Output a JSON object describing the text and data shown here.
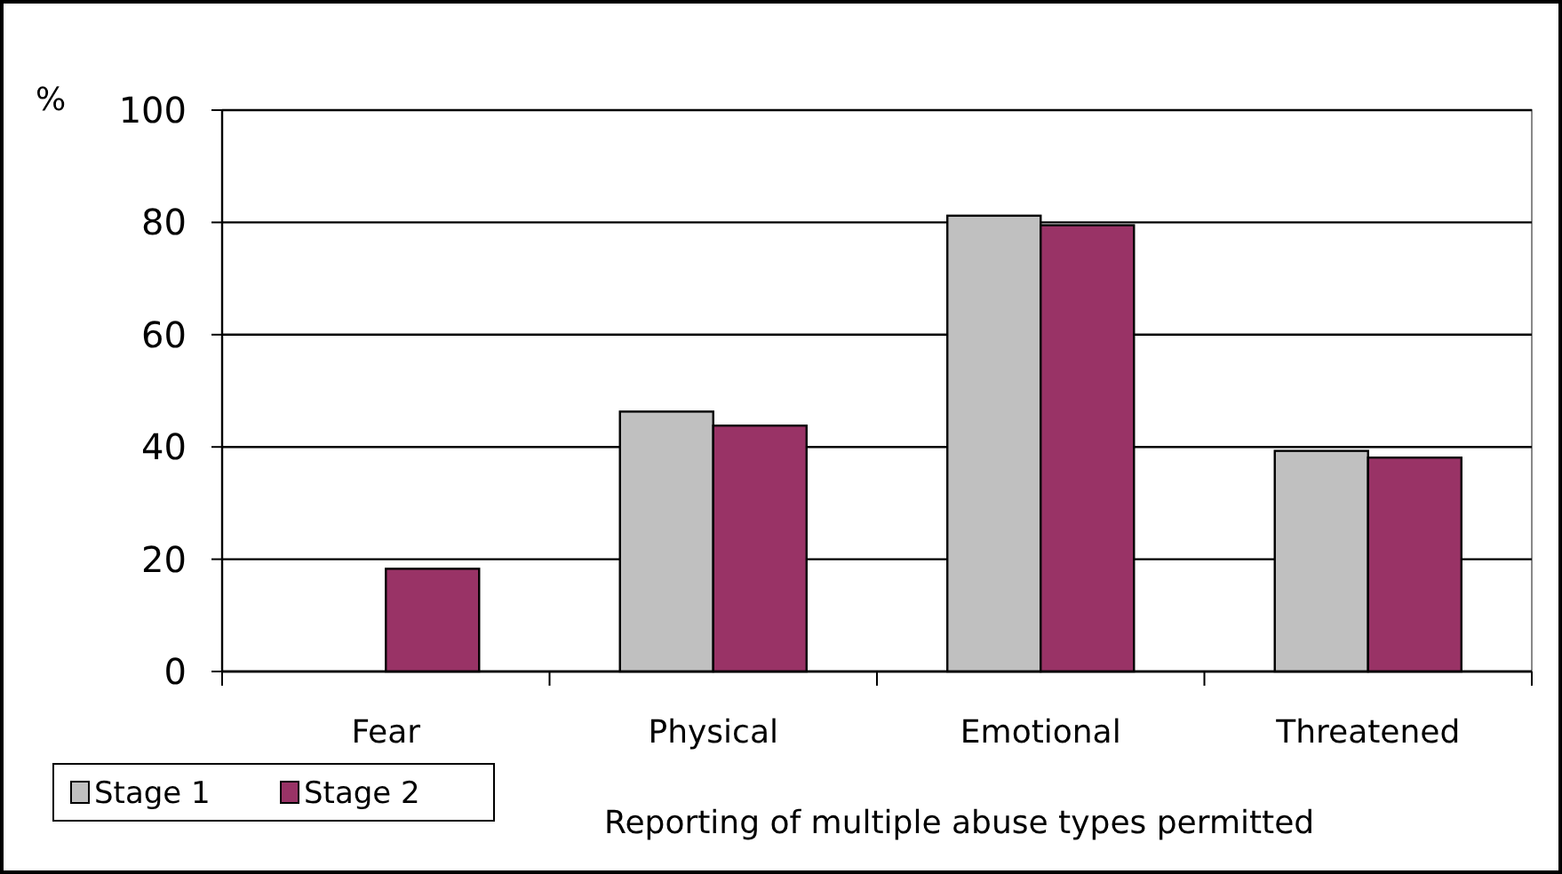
{
  "chart_data": {
    "type": "bar",
    "ylabel": "%",
    "xlabel": "Reporting of multiple abuse types permitted",
    "categories": [
      "Fear",
      "Physical",
      "Emotional",
      "Threatened"
    ],
    "series": [
      {
        "name": "Stage 1",
        "color": "#c0c0c0",
        "values": [
          null,
          46.3,
          81.2,
          39.3
        ]
      },
      {
        "name": "Stage 2",
        "color": "#993366",
        "values": [
          18.3,
          43.8,
          79.5,
          38.1
        ]
      }
    ],
    "ylim": [
      0,
      100
    ],
    "yticks": [
      0,
      20,
      40,
      60,
      80,
      100
    ],
    "grid": "y",
    "legend": "bottom left"
  }
}
